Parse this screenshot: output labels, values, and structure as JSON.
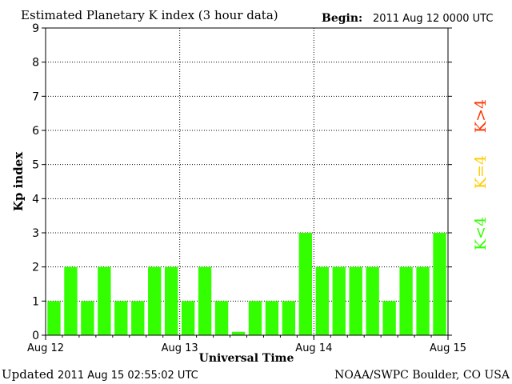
{
  "header": {
    "title": "Estimated Planetary K index (3 hour data)",
    "begin_label": "Begin:",
    "begin_value": "2011 Aug 12 0000 UTC"
  },
  "footer": {
    "updated_label": "Updated",
    "updated_value": "2011 Aug 15 02:55:02 UTC",
    "source": "NOAA/SWPC Boulder, CO USA"
  },
  "legend": {
    "items": [
      {
        "label": "K<4",
        "color": "#33ff00"
      },
      {
        "label": "K=4",
        "color": "#ffcc00"
      },
      {
        "label": "K>4",
        "color": "#ff3300"
      }
    ]
  },
  "chart_data": {
    "type": "bar",
    "title": "Estimated Planetary K index (3 hour data)",
    "xlabel": "Universal Time",
    "ylabel": "Kp index",
    "ylim": [
      0,
      9
    ],
    "yticks": [
      0,
      1,
      2,
      3,
      4,
      5,
      6,
      7,
      8,
      9
    ],
    "x_tick_labels": [
      "Aug 12",
      "Aug 13",
      "Aug 14",
      "Aug 15"
    ],
    "grid": true,
    "bar_color": "#33ff00",
    "values": [
      1,
      2,
      1,
      2,
      1,
      1,
      2,
      2,
      1,
      2,
      1,
      0.1,
      1,
      1,
      1,
      3,
      2,
      2,
      2,
      2,
      1,
      2,
      2,
      3
    ]
  }
}
